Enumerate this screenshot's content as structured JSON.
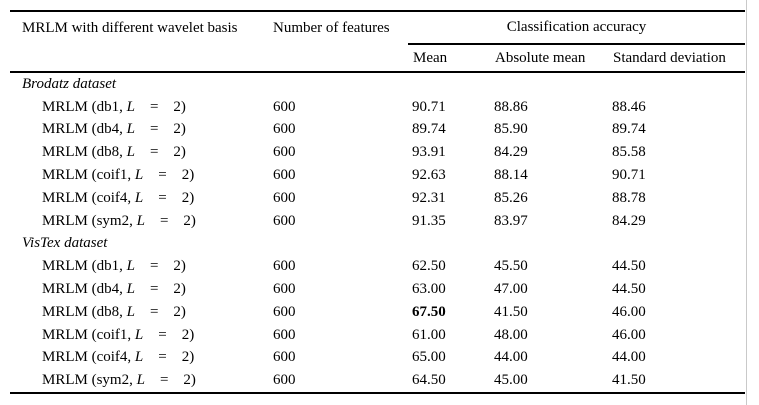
{
  "colors": {
    "text": "#000000",
    "background": "#ffffff",
    "rule": "#000000"
  },
  "table": {
    "header": {
      "basis": "MRLM with different wavelet basis",
      "features": "Number of features",
      "group": "Classification accuracy",
      "sub": [
        "Mean",
        "Absolute mean",
        "Standard deviation"
      ]
    },
    "sections": [
      {
        "title": "Brodatz dataset",
        "rows": [
          {
            "pre": "MRLM (db1, ",
            "var": "L",
            "eq": "=",
            "val": "2)",
            "features": "600",
            "mean": "90.71",
            "abs_mean": "88.86",
            "std_dev": "88.46",
            "bold_mean": false
          },
          {
            "pre": "MRLM (db4, ",
            "var": "L",
            "eq": "=",
            "val": "2)",
            "features": "600",
            "mean": "89.74",
            "abs_mean": "85.90",
            "std_dev": "89.74",
            "bold_mean": false
          },
          {
            "pre": "MRLM (db8, ",
            "var": "L",
            "eq": "=",
            "val": "2)",
            "features": "600",
            "mean": "93.91",
            "abs_mean": "84.29",
            "std_dev": "85.58",
            "bold_mean": false
          },
          {
            "pre": "MRLM (coif1, ",
            "var": "L",
            "eq": "=",
            "val": "2)",
            "features": "600",
            "mean": "92.63",
            "abs_mean": "88.14",
            "std_dev": "90.71",
            "bold_mean": false
          },
          {
            "pre": "MRLM (coif4, ",
            "var": "L",
            "eq": "=",
            "val": "2)",
            "features": "600",
            "mean": "92.31",
            "abs_mean": "85.26",
            "std_dev": "88.78",
            "bold_mean": false
          },
          {
            "pre": "MRLM (sym2, ",
            "var": "L",
            "eq": "=",
            "val": "2)",
            "features": "600",
            "mean": "91.35",
            "abs_mean": "83.97",
            "std_dev": "84.29",
            "bold_mean": false
          }
        ]
      },
      {
        "title": "VisTex dataset",
        "rows": [
          {
            "pre": "MRLM (db1, ",
            "var": "L",
            "eq": "=",
            "val": "2)",
            "features": "600",
            "mean": "62.50",
            "abs_mean": "45.50",
            "std_dev": "44.50",
            "bold_mean": false
          },
          {
            "pre": "MRLM (db4, ",
            "var": "L",
            "eq": "=",
            "val": "2)",
            "features": "600",
            "mean": "63.00",
            "abs_mean": "47.00",
            "std_dev": "44.50",
            "bold_mean": false
          },
          {
            "pre": "MRLM (db8, ",
            "var": "L",
            "eq": "=",
            "val": "2)",
            "features": "600",
            "mean": "67.50",
            "abs_mean": "41.50",
            "std_dev": "46.00",
            "bold_mean": true
          },
          {
            "pre": "MRLM (coif1, ",
            "var": "L",
            "eq": "=",
            "val": "2)",
            "features": "600",
            "mean": "61.00",
            "abs_mean": "48.00",
            "std_dev": "46.00",
            "bold_mean": false
          },
          {
            "pre": "MRLM (coif4, ",
            "var": "L",
            "eq": "=",
            "val": "2)",
            "features": "600",
            "mean": "65.00",
            "abs_mean": "44.00",
            "std_dev": "44.00",
            "bold_mean": false
          },
          {
            "pre": "MRLM (sym2, ",
            "var": "L",
            "eq": "=",
            "val": "2)",
            "features": "600",
            "mean": "64.50",
            "abs_mean": "45.00",
            "std_dev": "41.50",
            "bold_mean": false
          }
        ]
      }
    ]
  }
}
